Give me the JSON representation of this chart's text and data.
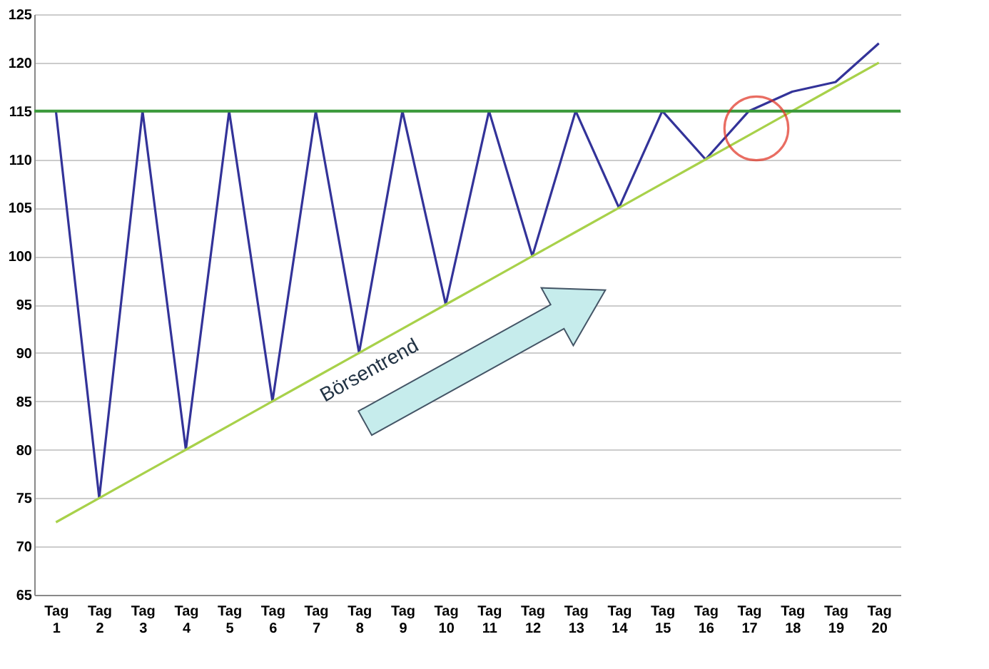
{
  "chart_data": {
    "type": "line",
    "categories": [
      "Tag 1",
      "Tag 2",
      "Tag 3",
      "Tag 4",
      "Tag 5",
      "Tag 6",
      "Tag 7",
      "Tag 8",
      "Tag 9",
      "Tag 10",
      "Tag 11",
      "Tag 12",
      "Tag 13",
      "Tag 14",
      "Tag 15",
      "Tag 16",
      "Tag 17",
      "Tag 18",
      "Tag 19",
      "Tag 20"
    ],
    "series": [
      {
        "color": "#333399",
        "values": [
          115,
          75,
          115,
          80,
          115,
          85,
          115,
          90,
          115,
          95,
          115,
          100,
          115,
          105,
          115,
          110,
          115,
          117,
          118,
          122
        ]
      },
      {
        "type": "line",
        "color": "#a8d14a",
        "values": [
          72.5,
          75,
          77.5,
          80,
          82.5,
          85,
          87.5,
          90,
          92.5,
          95,
          97.5,
          100,
          102.5,
          105,
          107.5,
          110,
          112.5,
          115,
          117.5,
          120
        ]
      }
    ],
    "ref_lines": [
      {
        "axis": "y",
        "value": 115,
        "color": "#3a9a3a"
      }
    ],
    "annotations": [
      "Börsentrend"
    ],
    "ylim": [
      65,
      125
    ],
    "yticks": [
      65,
      70,
      75,
      80,
      85,
      90,
      95,
      100,
      105,
      110,
      115,
      120,
      125
    ],
    "grid": "y",
    "marker": "none",
    "line_style": "solid"
  }
}
